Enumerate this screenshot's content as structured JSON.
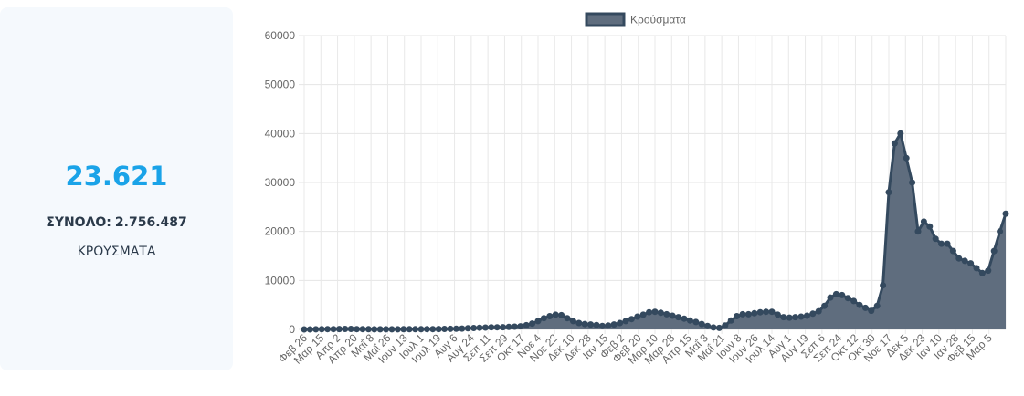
{
  "stats": {
    "daily_value": "23.621",
    "total_label": "ΣΥΝΟΛΟ:",
    "total_value": "2.756.487",
    "caption": "ΚΡΟΥΣΜΑΤΑ"
  },
  "colors": {
    "accent": "#1aa3e8",
    "area_fill": "#5f6d7e",
    "line": "#34495e",
    "card_bg": "#f5f9fd"
  },
  "chart_data": {
    "type": "area",
    "legend": {
      "label": "Κρούσματα",
      "position": "top"
    },
    "ylim": [
      0,
      60000
    ],
    "yticks": [
      "60000",
      "50000",
      "40000",
      "30000",
      "20000",
      "10000",
      "0"
    ],
    "grid": true,
    "x_tick_labels": [
      "Φεβ 26",
      "Μαρ 15",
      "Απρ 2",
      "Απρ 20",
      "Μαΐ 8",
      "Μαΐ 26",
      "Ιουν 13",
      "Ιουλ 1",
      "Ιουλ 19",
      "Αυγ 6",
      "Αυγ 24",
      "Σεπ 11",
      "Σεπ 29",
      "Οκτ 17",
      "Νοε 4",
      "Νοε 22",
      "Δεκ 10",
      "Δεκ 28",
      "Ιαν 15",
      "Φεβ 2",
      "Φεβ 20",
      "Μαρ 10",
      "Μαρ 28",
      "Απρ 15",
      "Μαΐ 3",
      "Μαΐ 21",
      "Ιουν 8",
      "Ιουν 26",
      "Ιουλ 14",
      "Αυγ 1",
      "Αυγ 19",
      "Σεπ 6",
      "Σεπ 24",
      "Οκτ 12",
      "Οκτ 30",
      "Νοε 17",
      "Δεκ 5",
      "Δεκ 23",
      "Ιαν 10",
      "Ιαν 28",
      "Φεβ 15",
      "Μαρ 5"
    ],
    "series": [
      {
        "name": "Κρούσματα",
        "values": [
          0,
          0,
          20,
          40,
          60,
          60,
          80,
          100,
          100,
          50,
          50,
          30,
          20,
          20,
          20,
          20,
          20,
          30,
          30,
          30,
          40,
          50,
          60,
          80,
          90,
          110,
          130,
          170,
          230,
          280,
          330,
          380,
          420,
          430,
          450,
          500,
          560,
          640,
          850,
          1200,
          1700,
          2300,
          2700,
          3000,
          2900,
          2300,
          1700,
          1300,
          1100,
          1000,
          900,
          700,
          800,
          1000,
          1300,
          1700,
          2100,
          2600,
          3000,
          3500,
          3600,
          3400,
          3100,
          2800,
          2500,
          2200,
          1800,
          1500,
          1100,
          700,
          400,
          300,
          800,
          1800,
          2700,
          3100,
          3100,
          3300,
          3500,
          3600,
          3600,
          3000,
          2500,
          2400,
          2500,
          2600,
          2800,
          3200,
          3700,
          4800,
          6500,
          7200,
          7000,
          6400,
          5800,
          5000,
          4400,
          3800,
          4800,
          9000,
          28000,
          38000,
          40000,
          35000,
          30000,
          20000,
          22000,
          21000,
          18500,
          17500,
          17500,
          16000,
          14500,
          14000,
          13500,
          12500,
          11500,
          12000,
          16000,
          20000,
          23621
        ]
      }
    ]
  }
}
